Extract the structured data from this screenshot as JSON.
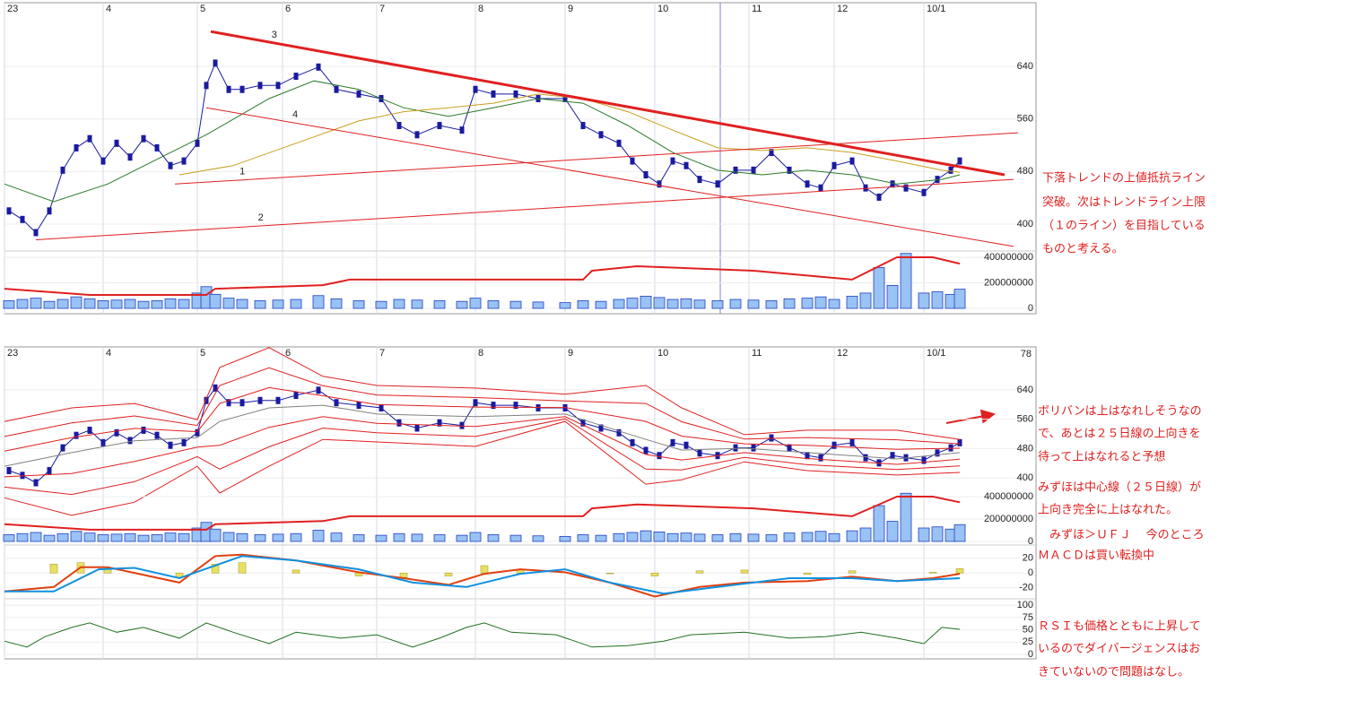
{
  "chart_data": [
    {
      "type": "line",
      "xlim": [
        0,
        230
      ],
      "xticks": [
        {
          "value": 0,
          "label": "23"
        },
        {
          "value": 22,
          "label": "4"
        },
        {
          "value": 43,
          "label": "5"
        },
        {
          "value": 62,
          "label": "6"
        },
        {
          "value": 83,
          "label": "7"
        },
        {
          "value": 105,
          "label": "8"
        },
        {
          "value": 125,
          "label": "9"
        },
        {
          "value": 145,
          "label": "10"
        },
        {
          "value": 166,
          "label": "11"
        },
        {
          "value": 185,
          "label": "12"
        },
        {
          "value": 205,
          "label": "10/1"
        }
      ],
      "ylim": [
        359,
        737
      ],
      "yticks": [
        400,
        480,
        560,
        640
      ],
      "series": [
        {
          "color": "#1a1aa0",
          "x": [
            1,
            4,
            7,
            10,
            13,
            16,
            19,
            22,
            25,
            28,
            31,
            34,
            37,
            40,
            43,
            45,
            47,
            50,
            53,
            57,
            61,
            65,
            70,
            74,
            79,
            84,
            88,
            92,
            97,
            102,
            105,
            109,
            114,
            119,
            125,
            129,
            133,
            137,
            140,
            143,
            146,
            149,
            152,
            155,
            159,
            163,
            167,
            171,
            175,
            179,
            182,
            185,
            189,
            192,
            195,
            198,
            201,
            205,
            208,
            211,
            213
          ],
          "values": [
            420,
            407,
            387,
            420,
            482,
            516,
            530,
            496,
            523,
            502,
            530,
            516,
            489,
            496,
            523,
            611,
            645,
            605,
            605,
            611,
            611,
            625,
            639,
            605,
            598,
            591,
            550,
            536,
            550,
            543,
            605,
            598,
            598,
            591,
            591,
            550,
            536,
            523,
            496,
            475,
            461,
            496,
            489,
            468,
            461,
            482,
            482,
            509,
            482,
            461,
            455,
            489,
            496,
            455,
            441,
            461,
            455,
            448,
            468,
            482,
            496
          ]
        },
        {
          "color": "#2a7a2a",
          "x": [
            0,
            11,
            23,
            35,
            45,
            59,
            69,
            79,
            89,
            99,
            109,
            119,
            129,
            139,
            149,
            159,
            169,
            179,
            189,
            199,
            209,
            213
          ],
          "values": [
            461,
            434,
            461,
            502,
            536,
            591,
            618,
            605,
            577,
            564,
            577,
            591,
            584,
            550,
            509,
            482,
            475,
            482,
            475,
            461,
            468,
            475
          ]
        },
        {
          "color": "#c8a020",
          "x": [
            39,
            51,
            65,
            79,
            89,
            99,
            109,
            119,
            129,
            139,
            149,
            159,
            169,
            179,
            189,
            199,
            209,
            213
          ],
          "values": [
            475,
            489,
            523,
            557,
            571,
            577,
            584,
            598,
            591,
            571,
            543,
            516,
            512,
            516,
            509,
            496,
            482,
            479
          ]
        }
      ],
      "trendlines": [
        {
          "label": "3",
          "color": "#e02020",
          "x": [
            46,
            223
          ],
          "values": [
            693,
            475
          ]
        },
        {
          "label": "4",
          "color": "#e02020",
          "x": [
            45,
            225
          ],
          "values": [
            577,
            366
          ]
        },
        {
          "label": "1",
          "color": "#e02020",
          "x": [
            38,
            226
          ],
          "values": [
            461,
            539
          ]
        },
        {
          "label": "2",
          "color": "#e02020",
          "x": [
            7,
            225
          ],
          "values": [
            376,
            468
          ]
        }
      ]
    },
    {
      "type": "bar",
      "xlim": [
        0,
        230
      ],
      "ylim": [
        -42000000,
        449000000
      ],
      "yticks": [
        0,
        200000000,
        400000000
      ],
      "color": "#99c2f5",
      "x": [
        1,
        4,
        7,
        10,
        13,
        16,
        19,
        22,
        25,
        28,
        31,
        34,
        37,
        40,
        43,
        45,
        47,
        50,
        53,
        57,
        61,
        65,
        70,
        74,
        79,
        84,
        88,
        92,
        97,
        102,
        105,
        109,
        114,
        119,
        125,
        129,
        133,
        137,
        140,
        143,
        146,
        149,
        152,
        155,
        159,
        163,
        167,
        171,
        175,
        179,
        182,
        185,
        189,
        192,
        195,
        198,
        201,
        205,
        208,
        211,
        213
      ],
      "values": [
        60000000,
        70000000,
        80000000,
        55000000,
        70000000,
        90000000,
        75000000,
        60000000,
        65000000,
        70000000,
        55000000,
        60000000,
        75000000,
        70000000,
        120000000,
        170000000,
        110000000,
        80000000,
        70000000,
        60000000,
        65000000,
        70000000,
        100000000,
        75000000,
        60000000,
        55000000,
        70000000,
        65000000,
        60000000,
        55000000,
        80000000,
        60000000,
        55000000,
        50000000,
        45000000,
        60000000,
        55000000,
        70000000,
        80000000,
        95000000,
        85000000,
        70000000,
        75000000,
        65000000,
        60000000,
        70000000,
        65000000,
        60000000,
        75000000,
        80000000,
        90000000,
        70000000,
        95000000,
        120000000,
        320000000,
        180000000,
        430000000,
        120000000,
        130000000,
        110000000,
        150000000
      ],
      "average": {
        "color": "#e02020",
        "x": [
          0,
          19,
          45,
          47,
          71,
          77,
          129,
          131,
          141,
          167,
          189,
          199,
          207,
          213
        ],
        "values": [
          154000000,
          105000000,
          105000000,
          154000000,
          182000000,
          225000000,
          225000000,
          295000000,
          330000000,
          295000000,
          225000000,
          400000000,
          400000000,
          350000000
        ]
      }
    },
    {
      "type": "line",
      "xlim": [
        0,
        230
      ],
      "ylim": [
        227,
        757
      ],
      "yticks": [
        400,
        480,
        560,
        640
      ],
      "corner_label": "78",
      "series": [
        {
          "color": "#e02020",
          "x": [
            0,
            15,
            29,
            43,
            48,
            59,
            71,
            83,
            105,
            125,
            143,
            151,
            165,
            179,
            199,
            213
          ],
          "values": [
            554,
            591,
            603,
            559,
            701,
            755,
            677,
            652,
            645,
            628,
            652,
            591,
            518,
            530,
            530,
            505
          ]
        },
        {
          "color": "#e02020",
          "x": [
            0,
            15,
            29,
            43,
            48,
            59,
            71,
            83,
            105,
            125,
            143,
            151,
            165,
            179,
            199,
            213
          ],
          "values": [
            513,
            550,
            569,
            543,
            652,
            700,
            651,
            626,
            619,
            610,
            603,
            553,
            506,
            510,
            504,
            493
          ]
        },
        {
          "color": "#e02020",
          "x": [
            0,
            15,
            29,
            43,
            48,
            59,
            71,
            83,
            105,
            125,
            143,
            151,
            165,
            179,
            199,
            213
          ],
          "values": [
            473,
            510,
            535,
            526,
            603,
            646,
            624,
            600,
            593,
            592,
            554,
            514,
            493,
            489,
            478,
            481
          ]
        },
        {
          "color": "#808080",
          "x": [
            0,
            15,
            29,
            43,
            48,
            59,
            71,
            83,
            105,
            125,
            143,
            151,
            165,
            179,
            199,
            213
          ],
          "values": [
            432,
            469,
            501,
            510,
            554,
            591,
            598,
            574,
            567,
            574,
            505,
            476,
            481,
            469,
            452,
            469
          ]
        },
        {
          "color": "#e02020",
          "x": [
            0,
            15,
            29,
            43,
            48,
            59,
            71,
            83,
            105,
            125,
            143,
            151,
            165,
            179,
            199,
            213
          ],
          "values": [
            403,
            412,
            445,
            484,
            489,
            538,
            567,
            549,
            540,
            567,
            464,
            449,
            469,
            453,
            437,
            451
          ]
        },
        {
          "color": "#e02020",
          "x": [
            0,
            15,
            29,
            43,
            48,
            59,
            71,
            83,
            105,
            125,
            143,
            151,
            165,
            179,
            199,
            213
          ],
          "values": [
            375,
            355,
            390,
            458,
            424,
            485,
            536,
            523,
            513,
            561,
            424,
            422,
            456,
            436,
            423,
            433
          ]
        },
        {
          "color": "#e02020",
          "x": [
            0,
            15,
            29,
            43,
            48,
            59,
            71,
            83,
            105,
            125,
            143,
            151,
            165,
            179,
            199,
            213
          ],
          "values": [
            346,
            298,
            334,
            432,
            359,
            432,
            505,
            498,
            486,
            554,
            383,
            395,
            444,
            420,
            408,
            415
          ]
        }
      ]
    },
    {
      "type": "bar",
      "xlim": [
        0,
        230
      ],
      "ylim": [
        -32000000,
        448000000
      ],
      "yticks": [
        0,
        200000000,
        400000000
      ]
    },
    {
      "type": "macd",
      "xlim": [
        0,
        230
      ],
      "ylim": [
        -35,
        38
      ],
      "yticks": [
        -20,
        0,
        20
      ],
      "series": [
        {
          "color": "#e04010",
          "x": [
            0,
            11,
            17,
            23,
            39,
            47,
            53,
            65,
            79,
            89,
            99,
            107,
            115,
            125,
            135,
            145,
            155,
            165,
            179,
            189,
            199,
            207,
            213
          ],
          "values": [
            -25,
            -19,
            8,
            8,
            -13,
            23,
            25,
            17,
            1,
            -7,
            -16,
            -1,
            5,
            1,
            -13,
            -32,
            -19,
            -13,
            -11,
            -5,
            -11,
            -7,
            -1
          ]
        },
        {
          "color": "#1090e0",
          "x": [
            0,
            11,
            21,
            29,
            39,
            53,
            65,
            79,
            91,
            103,
            115,
            125,
            135,
            147,
            159,
            175,
            189,
            199,
            213
          ],
          "values": [
            -25,
            -25,
            5,
            7,
            -7,
            23,
            17,
            5,
            -13,
            -19,
            -1,
            5,
            -13,
            -28,
            -19,
            -7,
            -7,
            -11,
            -7
          ]
        }
      ],
      "histogram": {
        "color": "#e8e060",
        "x": [
          0,
          11,
          17,
          23,
          39,
          47,
          53,
          65,
          79,
          89,
          99,
          107,
          115,
          125,
          135,
          145,
          155,
          165,
          179,
          189,
          199,
          207,
          213
        ],
        "values": [
          0,
          12,
          14,
          5,
          -6,
          12,
          14,
          4,
          -4,
          -6,
          -4,
          10,
          5,
          0,
          -1,
          -4,
          3,
          4,
          -2,
          3,
          0,
          1,
          6
        ]
      }
    },
    {
      "type": "line",
      "xlim": [
        0,
        230
      ],
      "ylim": [
        -9,
        113
      ],
      "yticks": [
        0,
        25,
        50,
        75,
        100
      ],
      "series": [
        {
          "color": "#207020",
          "x": [
            0,
            5,
            9,
            15,
            19,
            25,
            31,
            39,
            45,
            51,
            59,
            65,
            75,
            83,
            91,
            97,
            103,
            107,
            113,
            123,
            131,
            139,
            147,
            153,
            165,
            175,
            183,
            191,
            199,
            205,
            209,
            213
          ],
          "values": [
            27,
            15,
            36,
            55,
            64,
            45,
            55,
            33,
            64,
            45,
            22,
            45,
            33,
            40,
            15,
            33,
            55,
            64,
            45,
            40,
            15,
            18,
            27,
            40,
            45,
            33,
            36,
            45,
            33,
            22,
            55,
            51
          ]
        }
      ]
    }
  ],
  "notes": {
    "top": [
      "下落トレンドの上値抵抗ライン",
      "突破。次はトレンドライン上限",
      "（１のライン）を目指している",
      "ものと考える。"
    ],
    "bottom": [
      "ボリバンは上はなれしそうなの",
      "で、あとは２５日線の上向きを",
      "待って上はなれると予想",
      "みずほは中心線（２５日線）が",
      "上向き完全に上はなれた。",
      "　みずほ＞ＵＦＪ　 今のところ",
      "ＭＡＣＤは買い転換中",
      "ＲＳＩも価格とともに上昇して",
      "いるのでダイバージェンスはお",
      "きていないので問題はなし。"
    ]
  }
}
